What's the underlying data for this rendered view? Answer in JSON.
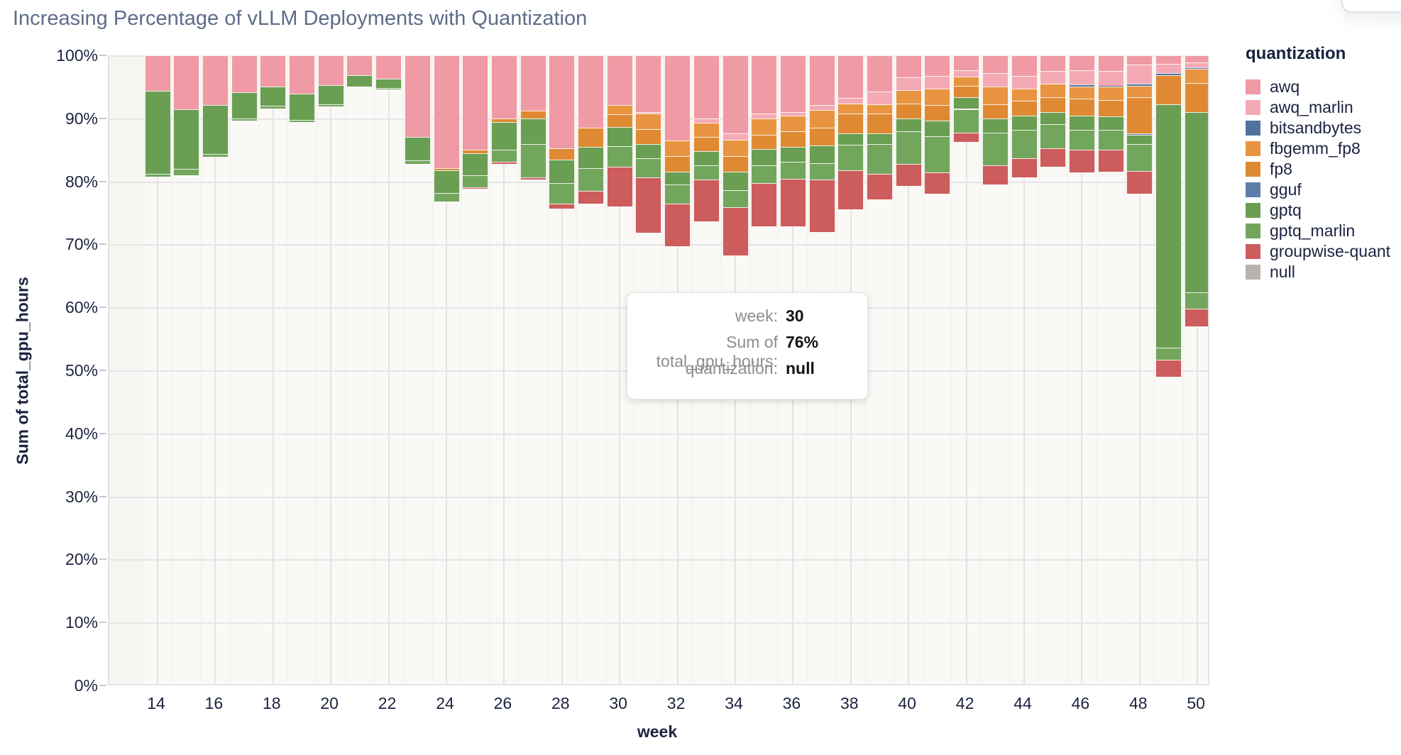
{
  "title": "Increasing Percentage of vLLM Deployments with Quantization",
  "legend": {
    "title": "quantization",
    "items": [
      {
        "label": "awq",
        "color": "#ef9aa4"
      },
      {
        "label": "awq_marlin",
        "color": "#f3aab4"
      },
      {
        "label": "bitsandbytes",
        "color": "#50729f"
      },
      {
        "label": "fbgemm_fp8",
        "color": "#e89440"
      },
      {
        "label": "fp8",
        "color": "#df8a33"
      },
      {
        "label": "gguf",
        "color": "#5d7ea9"
      },
      {
        "label": "gptq",
        "color": "#6a9e53"
      },
      {
        "label": "gptq_marlin",
        "color": "#73a65d"
      },
      {
        "label": "groupwise-quant",
        "color": "#cd5c5c"
      },
      {
        "label": "null",
        "color": "#b9b3af"
      }
    ]
  },
  "axes": {
    "x_title": "week",
    "y_title": "Sum of total_gpu_hours",
    "y_ticks": [
      "100%",
      "90%",
      "80%",
      "70%",
      "60%",
      "50%",
      "40%",
      "30%",
      "20%",
      "10%",
      "0%"
    ],
    "x_ticks": [
      14,
      16,
      18,
      20,
      22,
      24,
      26,
      28,
      30,
      32,
      34,
      36,
      38,
      40,
      42,
      44,
      46,
      48,
      50
    ]
  },
  "tooltip": {
    "rows": [
      {
        "label": "week:",
        "value": "30"
      },
      {
        "label": "Sum of total_gpu_hours:",
        "value": "76%"
      },
      {
        "label": "quantization:",
        "value": "null"
      }
    ]
  },
  "chart_data": {
    "type": "bar",
    "mode": "stacked-percent",
    "title": "Increasing Percentage of vLLM Deployments with Quantization",
    "xlabel": "week",
    "ylabel": "Sum of total_gpu_hours",
    "ylim": [
      0,
      100
    ],
    "grid": true,
    "legend_position": "right",
    "x": [
      14,
      15,
      16,
      17,
      18,
      19,
      20,
      21,
      22,
      23,
      24,
      25,
      26,
      27,
      28,
      29,
      30,
      31,
      32,
      33,
      34,
      35,
      36,
      37,
      38,
      39,
      40,
      41,
      42,
      43,
      44,
      45,
      46,
      47,
      48,
      49,
      50
    ],
    "stack_order_bottom_to_top": [
      "null",
      "groupwise-quant",
      "gptq_marlin",
      "gptq",
      "gguf",
      "fp8",
      "fbgemm_fp8",
      "bitsandbytes",
      "awq_marlin",
      "awq"
    ],
    "series": [
      {
        "name": "null",
        "color": "#b9b3af",
        "draw": false,
        "values": [
          80.7,
          81.0,
          83.9,
          89.6,
          91.6,
          89.4,
          91.9,
          95.0,
          94.6,
          82.8,
          76.8,
          78.8,
          82.8,
          80.3,
          75.7,
          76.5,
          76.0,
          71.8,
          69.7,
          73.6,
          68.2,
          72.9,
          72.9,
          72.0,
          75.6,
          77.1,
          79.3,
          78.0,
          86.3,
          79.5,
          80.6,
          82.3,
          81.4,
          81.5,
          78.0,
          49.0,
          57.0
        ]
      },
      {
        "name": "groupwise-quant",
        "color": "#cd5c5c",
        "draw": true,
        "values": [
          0,
          0,
          0,
          0,
          0,
          0,
          0,
          0,
          0,
          0,
          0,
          0.3,
          0.3,
          0.3,
          0.8,
          2.0,
          6.3,
          8.8,
          6.8,
          6.7,
          7.7,
          6.8,
          7.5,
          8.3,
          6.2,
          4.1,
          3.5,
          3.4,
          1.4,
          3.0,
          3.1,
          3.0,
          3.6,
          3.5,
          3.6,
          2.7,
          2.8
        ]
      },
      {
        "name": "gptq_marlin",
        "color": "#73a65d",
        "draw": true,
        "values": [
          0.5,
          1.0,
          0.4,
          0.4,
          0.4,
          0.4,
          0.3,
          0.2,
          0.2,
          0.5,
          1.4,
          1.9,
          1.9,
          5.3,
          3.2,
          3.6,
          3.3,
          3.1,
          3.0,
          2.2,
          2.7,
          2.8,
          2.7,
          2.6,
          4.0,
          4.7,
          5.2,
          5.8,
          3.8,
          5.2,
          4.5,
          3.8,
          3.2,
          3.2,
          4.3,
          1.9,
          2.6
        ]
      },
      {
        "name": "gptq",
        "color": "#6a9e53",
        "draw": true,
        "values": [
          13.2,
          9.4,
          7.8,
          4.2,
          3.1,
          4.1,
          3.1,
          1.6,
          1.5,
          3.8,
          3.6,
          3.5,
          4.4,
          4.1,
          3.7,
          3.4,
          3.0,
          2.2,
          2.0,
          2.3,
          2.9,
          2.6,
          2.4,
          2.8,
          1.8,
          1.7,
          2.0,
          2.4,
          1.9,
          2.3,
          2.2,
          1.9,
          2.2,
          2.1,
          1.5,
          38.6,
          28.6
        ]
      },
      {
        "name": "gguf",
        "color": "#5d7ea9",
        "draw": true,
        "values": [
          0,
          0,
          0,
          0,
          0,
          0,
          0,
          0,
          0,
          0,
          0,
          0,
          0,
          0,
          0,
          0,
          0,
          0,
          0,
          0,
          0,
          0,
          0,
          0,
          0,
          0,
          0,
          0,
          0,
          0,
          0,
          0,
          0,
          0,
          0.2,
          0,
          0
        ]
      },
      {
        "name": "fp8",
        "color": "#df8a33",
        "draw": true,
        "values": [
          0,
          0,
          0,
          0,
          0,
          0,
          0,
          0,
          0,
          0,
          0.3,
          0.5,
          0.6,
          1.2,
          1.8,
          3.0,
          2.0,
          2.4,
          2.5,
          2.2,
          2.5,
          2.3,
          2.4,
          2.8,
          3.2,
          3.2,
          2.3,
          2.5,
          1.8,
          2.2,
          2.4,
          2.4,
          2.7,
          2.6,
          5.8,
          4.7,
          4.6
        ]
      },
      {
        "name": "fbgemm_fp8",
        "color": "#e89440",
        "draw": true,
        "values": [
          0,
          0,
          0,
          0,
          0,
          0,
          0,
          0,
          0,
          0,
          0,
          0,
          0,
          0,
          0,
          0,
          1.5,
          2.5,
          2.5,
          2.3,
          2.6,
          2.6,
          2.5,
          2.8,
          1.5,
          1.4,
          2.2,
          2.6,
          1.4,
          2.9,
          1.9,
          2.1,
          2.0,
          2.1,
          1.8,
          0,
          2.3
        ]
      },
      {
        "name": "bitsandbytes",
        "color": "#50729f",
        "draw": true,
        "values": [
          0,
          0,
          0,
          0,
          0,
          0,
          0,
          0,
          0,
          0,
          0,
          0,
          0,
          0,
          0,
          0,
          0,
          0,
          0,
          0,
          0,
          0,
          0,
          0,
          0,
          0,
          0,
          0,
          0,
          0,
          0,
          0,
          0.3,
          0.2,
          0.3,
          0.3,
          0.2
        ]
      },
      {
        "name": "awq_marlin",
        "color": "#f3aab4",
        "draw": true,
        "values": [
          0,
          0,
          0,
          0,
          0,
          0,
          0,
          0,
          0,
          0,
          0,
          0,
          0,
          0,
          0,
          0,
          0,
          0.2,
          0,
          0.7,
          1.0,
          0.8,
          0.6,
          0.8,
          0.9,
          2.1,
          2.0,
          2.0,
          1.0,
          2.1,
          2.0,
          2.0,
          2.2,
          2.3,
          3.0,
          1.4,
          0.8
        ]
      },
      {
        "name": "awq",
        "color": "#ef9aa4",
        "draw": true,
        "values": [
          5.6,
          8.6,
          7.9,
          5.8,
          4.9,
          6.1,
          4.7,
          3.2,
          3.7,
          12.9,
          17.9,
          15.0,
          10.0,
          8.8,
          14.8,
          11.5,
          7.9,
          9.0,
          13.5,
          10.0,
          12.4,
          9.2,
          9.0,
          7.9,
          6.8,
          5.7,
          3.5,
          3.3,
          2.4,
          2.8,
          3.3,
          2.5,
          2.4,
          2.5,
          1.5,
          1.4,
          1.1
        ]
      }
    ],
    "hovered_bar": {
      "week": 30,
      "series": "null",
      "value_percent": 76
    }
  },
  "colors": {
    "title_text": "#5e6c8a",
    "axis_text": "#1c2340",
    "plot_background": "#f7f5f1",
    "gridline": "#e5e3e8",
    "tooltip_label": "#8d8d8f",
    "tooltip_value": "#141414"
  }
}
